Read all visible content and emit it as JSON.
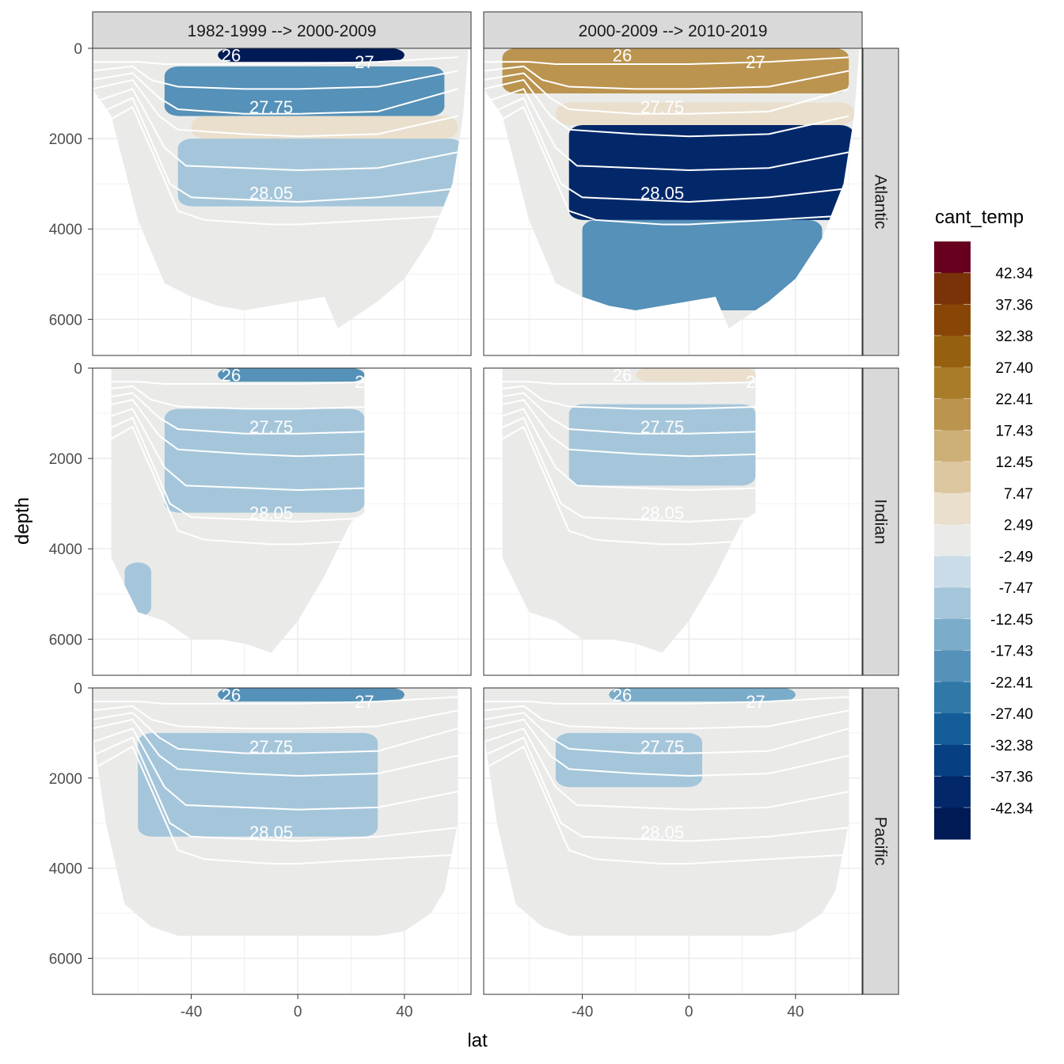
{
  "chart_data": {
    "type": "heatmap",
    "xlabel": "lat",
    "ylabel": "depth",
    "legend_title": "cant_temp",
    "legend_placement": "right",
    "grid": true,
    "columns": [
      "1982-1999 --> 2000-2009",
      "2000-2009 --> 2010-2019"
    ],
    "rows": [
      "Atlantic",
      "Indian",
      "Pacific"
    ],
    "xlim": [
      -77,
      65
    ],
    "ylim": [
      6800,
      0
    ],
    "x_ticks": [
      -40,
      0,
      40
    ],
    "x_tick_labels": [
      "-40",
      "0",
      "40"
    ],
    "y_ticks": [
      0,
      2000,
      4000,
      6000
    ],
    "y_tick_labels": [
      "0",
      "2000",
      "4000",
      "6000"
    ],
    "legend_bins": [
      {
        "label": "42.34",
        "color": "#67001f"
      },
      {
        "label": "37.36",
        "color": "#7a3208"
      },
      {
        "label": "32.38",
        "color": "#874606"
      },
      {
        "label": "27.40",
        "color": "#95610f"
      },
      {
        "label": "22.41",
        "color": "#a97c2a"
      },
      {
        "label": "17.43",
        "color": "#bb944f"
      },
      {
        "label": "12.45",
        "color": "#ccb078"
      },
      {
        "label": "7.47",
        "color": "#dcc7a0"
      },
      {
        "label": "2.49",
        "color": "#e9dfcc"
      },
      {
        "label": "-2.49",
        "color": "#eaebe9"
      },
      {
        "label": "-7.47",
        "color": "#c9dce8"
      },
      {
        "label": "-12.45",
        "color": "#a5c6da"
      },
      {
        "label": "-17.43",
        "color": "#7bacc9"
      },
      {
        "label": "-22.41",
        "color": "#5591b8"
      },
      {
        "label": "-27.40",
        "color": "#2f78a8"
      },
      {
        "label": "-32.38",
        "color": "#155d98"
      },
      {
        "label": "-37.36",
        "color": "#063f82"
      },
      {
        "label": "-42.34",
        "color": "#02286a"
      },
      {
        "label": "",
        "color": "#001a56"
      }
    ],
    "isopycnal_labels": {
      "Atlantic": [
        "27.75",
        "28.05",
        "27",
        "26"
      ],
      "Indian": [
        "27.75",
        "28.05",
        "27",
        "26"
      ],
      "Pacific": [
        "27.75",
        "28.05",
        "27",
        "26"
      ]
    },
    "panels": [
      {
        "column": 0,
        "row": 0,
        "anomalies": [
          {
            "lat": [
              -30,
              40
            ],
            "depth": [
              0,
              300
            ],
            "value": -42
          },
          {
            "lat": [
              -50,
              55
            ],
            "depth": [
              400,
              1500
            ],
            "value": -15
          },
          {
            "lat": [
              -40,
              60
            ],
            "depth": [
              1500,
              2000
            ],
            "value": 5
          },
          {
            "lat": [
              -45,
              62
            ],
            "depth": [
              2000,
              3500
            ],
            "value": -5
          },
          {
            "lat": [
              0,
              45
            ],
            "depth": [
              3500,
              5800
            ],
            "value": 4
          }
        ]
      },
      {
        "column": 1,
        "row": 0,
        "anomalies": [
          {
            "lat": [
              -70,
              60
            ],
            "depth": [
              0,
              1000
            ],
            "value": 20
          },
          {
            "lat": [
              -50,
              62
            ],
            "depth": [
              1200,
              1700
            ],
            "value": 5
          },
          {
            "lat": [
              -45,
              62
            ],
            "depth": [
              1700,
              3800
            ],
            "value": -35
          },
          {
            "lat": [
              -40,
              50
            ],
            "depth": [
              3800,
              5800
            ],
            "value": -15
          }
        ]
      },
      {
        "column": 0,
        "row": 1,
        "anomalies": [
          {
            "lat": [
              -30,
              25
            ],
            "depth": [
              0,
              300
            ],
            "value": -15
          },
          {
            "lat": [
              -50,
              25
            ],
            "depth": [
              900,
              3200
            ],
            "value": -5
          },
          {
            "lat": [
              -65,
              -55
            ],
            "depth": [
              4300,
              5500
            ],
            "value": -5
          }
        ]
      },
      {
        "column": 1,
        "row": 1,
        "anomalies": [
          {
            "lat": [
              -20,
              25
            ],
            "depth": [
              0,
              300
            ],
            "value": 8
          },
          {
            "lat": [
              -45,
              25
            ],
            "depth": [
              800,
              2600
            ],
            "value": -5
          }
        ]
      },
      {
        "column": 0,
        "row": 2,
        "anomalies": [
          {
            "lat": [
              -30,
              40
            ],
            "depth": [
              0,
              300
            ],
            "value": -15
          },
          {
            "lat": [
              -60,
              30
            ],
            "depth": [
              1000,
              3300
            ],
            "value": -5
          }
        ]
      },
      {
        "column": 1,
        "row": 2,
        "anomalies": [
          {
            "lat": [
              -30,
              40
            ],
            "depth": [
              0,
              300
            ],
            "value": -12
          },
          {
            "lat": [
              -50,
              5
            ],
            "depth": [
              1000,
              2200
            ],
            "value": -5
          }
        ]
      }
    ]
  }
}
